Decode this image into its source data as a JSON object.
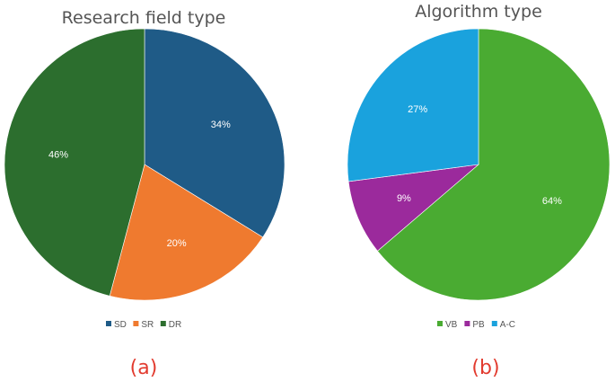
{
  "chart_data": [
    {
      "type": "pie",
      "title": "Research field type",
      "caption": "(a)",
      "legend_position": "bottom",
      "slices": [
        {
          "label": "SD",
          "value": 34,
          "display": "34%",
          "color": "#1f5b87"
        },
        {
          "label": "SR",
          "value": 20,
          "display": "20%",
          "color": "#ef7a2f"
        },
        {
          "label": "DR",
          "value": 46,
          "display": "46%",
          "color": "#2c6e2e"
        }
      ]
    },
    {
      "type": "pie",
      "title": "Algorithm type",
      "caption": "(b)",
      "legend_position": "bottom",
      "slices": [
        {
          "label": "VB",
          "value": 64,
          "display": "64%",
          "color": "#4aab32"
        },
        {
          "label": "PB",
          "value": 9,
          "display": "9%",
          "color": "#9b2a9c"
        },
        {
          "label": "A-C",
          "value": 27,
          "display": "27%",
          "color": "#1aa2dd"
        }
      ]
    }
  ]
}
